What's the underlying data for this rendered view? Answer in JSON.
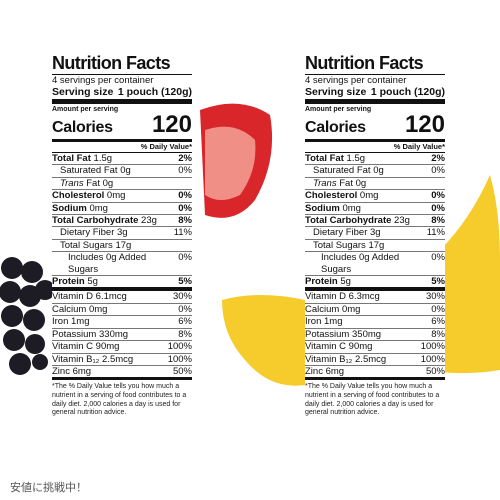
{
  "labels": [
    {
      "title": "Nutrition Facts",
      "servings": "4 servings per container",
      "serving_size_label": "Serving size",
      "serving_size_value": "1 pouch (120g)",
      "amount_per_serving": "Amount per serving",
      "calories_label": "Calories",
      "calories_value": "120",
      "dv_header": "% Daily Value*",
      "rows": [
        {
          "name": "Total Fat",
          "amount": "1.5g",
          "dv": "2%"
        },
        {
          "name": "Saturated Fat",
          "amount": "0g",
          "dv": "0%"
        },
        {
          "name": "Trans",
          "amount": "Fat 0g",
          "dv": ""
        },
        {
          "name": "Cholesterol",
          "amount": "0mg",
          "dv": "0%"
        },
        {
          "name": "Sodium",
          "amount": "0mg",
          "dv": "0%"
        },
        {
          "name": "Total Carbohydrate",
          "amount": "23g",
          "dv": "8%"
        },
        {
          "name": "Dietary Fiber",
          "amount": "3g",
          "dv": "11%"
        },
        {
          "name": "Total Sugars",
          "amount": "17g",
          "dv": ""
        },
        {
          "name": "Includes 0g Added Sugars",
          "amount": "",
          "dv": "0%"
        },
        {
          "name": "Protein",
          "amount": "5g",
          "dv": "5%"
        },
        {
          "name": "Vitamin D",
          "amount": "6.1mcg",
          "dv": "30%"
        },
        {
          "name": "Calcium",
          "amount": "0mg",
          "dv": "0%"
        },
        {
          "name": "Iron",
          "amount": "1mg",
          "dv": "6%"
        },
        {
          "name": "Potassium",
          "amount": "330mg",
          "dv": "8%"
        },
        {
          "name": "Vitamin C",
          "amount": "90mg",
          "dv": "100%"
        },
        {
          "name": "Vitamin B₁₂",
          "amount": "2.5mcg",
          "dv": "100%"
        },
        {
          "name": "Zinc",
          "amount": "6mg",
          "dv": "50%"
        }
      ],
      "footnote": "*The % Daily Value tells you how much a nutrient in a serving of food contributes to a daily diet. 2,000 calories a day is used for general nutrition advice."
    },
    {
      "title": "Nutrition Facts",
      "servings": "4 servings per container",
      "serving_size_label": "Serving size",
      "serving_size_value": "1 pouch (120g)",
      "amount_per_serving": "Amount per serving",
      "calories_label": "Calories",
      "calories_value": "120",
      "dv_header": "% Daily Value*",
      "rows": [
        {
          "name": "Total Fat",
          "amount": "1.5g",
          "dv": "2%"
        },
        {
          "name": "Saturated Fat",
          "amount": "0g",
          "dv": "0%"
        },
        {
          "name": "Trans",
          "amount": "Fat 0g",
          "dv": ""
        },
        {
          "name": "Cholesterol",
          "amount": "0mg",
          "dv": "0%"
        },
        {
          "name": "Sodium",
          "amount": "0mg",
          "dv": "0%"
        },
        {
          "name": "Total Carbohydrate",
          "amount": "23g",
          "dv": "8%"
        },
        {
          "name": "Dietary Fiber",
          "amount": "3g",
          "dv": "11%"
        },
        {
          "name": "Total Sugars",
          "amount": "17g",
          "dv": ""
        },
        {
          "name": "Includes 0g Added Sugars",
          "amount": "",
          "dv": "0%"
        },
        {
          "name": "Protein",
          "amount": "5g",
          "dv": "5%"
        },
        {
          "name": "Vitamin D",
          "amount": "6.3mcg",
          "dv": "30%"
        },
        {
          "name": "Calcium",
          "amount": "0mg",
          "dv": "0%"
        },
        {
          "name": "Iron",
          "amount": "1mg",
          "dv": "6%"
        },
        {
          "name": "Potassium",
          "amount": "350mg",
          "dv": "8%"
        },
        {
          "name": "Vitamin C",
          "amount": "90mg",
          "dv": "100%"
        },
        {
          "name": "Vitamin B₁₂",
          "amount": "2.5mcg",
          "dv": "100%"
        },
        {
          "name": "Zinc",
          "amount": "6mg",
          "dv": "50%"
        }
      ],
      "footnote": "*The % Daily Value tells you how much a nutrient in a serving of food contributes to a daily diet. 2,000 calories a day is used for general nutrition advice."
    }
  ],
  "footer": "安値に挑戦中！"
}
